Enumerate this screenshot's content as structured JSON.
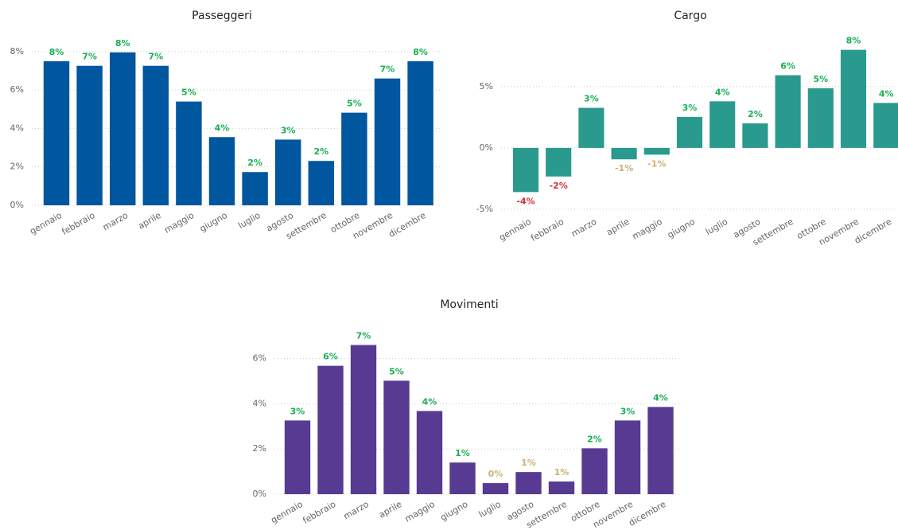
{
  "chart_data": [
    {
      "type": "bar",
      "title": "Passeggeri",
      "categories": [
        "gennaio",
        "febbraio",
        "marzo",
        "aprile",
        "maggio",
        "giugno",
        "luglio",
        "agosto",
        "settembre",
        "ottobre",
        "novembre",
        "dicembre"
      ],
      "values": [
        7.5,
        7.26,
        7.96,
        7.26,
        5.4,
        3.55,
        1.73,
        3.42,
        2.31,
        4.82,
        6.6,
        7.5
      ],
      "value_labels": [
        "8%",
        "7%",
        "8%",
        "7%",
        "5%",
        "4%",
        "2%",
        "3%",
        "2%",
        "5%",
        "7%",
        "8%"
      ],
      "value_label_colors": [
        "#1aaf54",
        "#1aaf54",
        "#1aaf54",
        "#1aaf54",
        "#1aaf54",
        "#1aaf54",
        "#1aaf54",
        "#1aaf54",
        "#1aaf54",
        "#1aaf54",
        "#1aaf54",
        "#1aaf54"
      ],
      "color": "#00569f",
      "ylim": [
        0,
        8.2
      ],
      "yticks": [
        {
          "value": 0,
          "label": "0%"
        },
        {
          "value": 2,
          "label": "2%"
        },
        {
          "value": 4,
          "label": "4%"
        },
        {
          "value": 6,
          "label": "6%"
        },
        {
          "value": 8,
          "label": "8%"
        }
      ],
      "grid": true
    },
    {
      "type": "bar",
      "title": "Cargo",
      "categories": [
        "gennaio",
        "febbraio",
        "marzo",
        "aprile",
        "maggio",
        "giugno",
        "luglio",
        "agosto",
        "settembre",
        "ottobre",
        "novembre",
        "dicembre"
      ],
      "values": [
        -3.6,
        -2.33,
        3.27,
        -0.93,
        -0.55,
        2.53,
        3.8,
        2.0,
        5.93,
        4.87,
        8.0,
        3.67
      ],
      "value_labels": [
        "-4%",
        "-2%",
        "3%",
        "-1%",
        "-1%",
        "3%",
        "4%",
        "2%",
        "6%",
        "5%",
        "8%",
        "4%"
      ],
      "value_label_colors": [
        "#d13438",
        "#d13438",
        "#1aaf54",
        "#c8b273",
        "#c8b273",
        "#1aaf54",
        "#1aaf54",
        "#1aaf54",
        "#1aaf54",
        "#1aaf54",
        "#1aaf54",
        "#1aaf54"
      ],
      "color": "#2a9a8f",
      "ylim": [
        -5.2,
        8.3
      ],
      "yticks": [
        {
          "value": -5,
          "label": "-5%"
        },
        {
          "value": 0,
          "label": "0%"
        },
        {
          "value": 5,
          "label": "5%"
        }
      ],
      "grid": true
    },
    {
      "type": "bar",
      "title": "Movimenti",
      "categories": [
        "gennaio",
        "febbraio",
        "marzo",
        "aprile",
        "maggio",
        "giugno",
        "luglio",
        "agosto",
        "settembre",
        "ottobre",
        "novembre",
        "dicembre"
      ],
      "values": [
        3.26,
        5.68,
        6.6,
        5.02,
        3.68,
        1.4,
        0.49,
        0.98,
        0.56,
        2.03,
        3.26,
        3.86
      ],
      "value_labels": [
        "3%",
        "6%",
        "7%",
        "5%",
        "4%",
        "1%",
        "0%",
        "1%",
        "1%",
        "2%",
        "3%",
        "4%"
      ],
      "value_label_colors": [
        "#1aaf54",
        "#1aaf54",
        "#1aaf54",
        "#1aaf54",
        "#1aaf54",
        "#1aaf54",
        "#c8b273",
        "#c8b273",
        "#c8b273",
        "#1aaf54",
        "#1aaf54",
        "#1aaf54"
      ],
      "color": "#573a91",
      "ylim": [
        0,
        6.9
      ],
      "yticks": [
        {
          "value": 0,
          "label": "0%"
        },
        {
          "value": 2,
          "label": "2%"
        },
        {
          "value": 4,
          "label": "4%"
        },
        {
          "value": 6,
          "label": "6%"
        }
      ],
      "grid": true
    }
  ]
}
